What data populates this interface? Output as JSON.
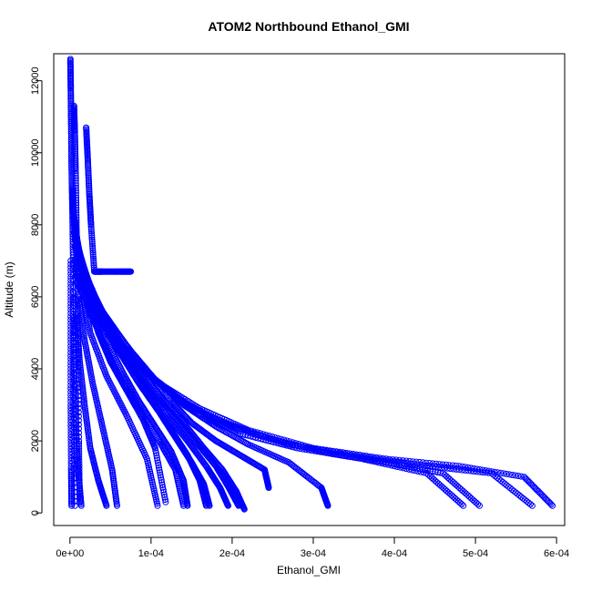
{
  "chart_data": {
    "type": "scatter",
    "title": "ATOM2 Northbound Ethanol_GMI",
    "xlabel": "Ethanol_GMI",
    "ylabel": "Altitude (m)",
    "xlim": [
      -2e-05,
      0.00061
    ],
    "ylim": [
      -350,
      12750
    ],
    "x_ticks": [
      0,
      0.0001,
      0.0002,
      0.0003,
      0.0004,
      0.0005,
      0.0006
    ],
    "x_tick_labels": [
      "0e+00",
      "1e-04",
      "2e-04",
      "3e-04",
      "4e-04",
      "5e-04",
      "6e-04"
    ],
    "y_ticks": [
      0,
      2000,
      4000,
      6000,
      8000,
      10000,
      12000
    ],
    "y_tick_labels": [
      "0",
      "2000",
      "4000",
      "6000",
      "8000",
      "10000",
      "12000"
    ],
    "grid": false,
    "marker": "open-circle",
    "line_connected": true,
    "series_color": "#0000ff",
    "series": [
      {
        "x": [
          5e-07,
          1e-06,
          1.5e-06,
          2e-06,
          3e-06,
          4e-06,
          5e-06,
          6e-06
        ],
        "y": [
          12600,
          11800,
          10800,
          9600,
          8400,
          6800,
          3000,
          200
        ]
      },
      {
        "x": [
          5e-06,
          6e-06,
          7e-06,
          8e-06,
          9e-06,
          1e-05,
          1.1e-05,
          1.2e-05
        ],
        "y": [
          11300,
          10600,
          9500,
          8000,
          6500,
          4500,
          2000,
          300
        ]
      },
      {
        "x": [
          2e-05,
          2.2e-05,
          2.4e-05,
          2.6e-05,
          3e-05,
          4e-05,
          6e-05,
          7.5e-05
        ],
        "y": [
          10700,
          9800,
          8800,
          8000,
          6700,
          6700,
          6700,
          6700
        ]
      },
      {
        "x": [
          3e-06,
          5e-06,
          1.2e-05,
          2.2e-05,
          3.5e-05,
          5e-05,
          7e-05,
          9e-05,
          0.000105,
          0.000118
        ],
        "y": [
          9000,
          8200,
          7000,
          6000,
          5000,
          4200,
          3400,
          2600,
          1800,
          300
        ]
      },
      {
        "x": [
          3e-06,
          6e-06,
          1.5e-05,
          2.8e-05,
          4.5e-05,
          6.5e-05,
          8.5e-05,
          0.000105,
          0.000125,
          0.00014,
          0.000145
        ],
        "y": [
          8800,
          7800,
          6800,
          5800,
          4800,
          3900,
          3100,
          2400,
          1700,
          900,
          200
        ]
      },
      {
        "x": [
          3e-06,
          8e-06,
          1.8e-05,
          3.5e-05,
          5.5e-05,
          8e-05,
          0.000105,
          0.000125,
          0.000145,
          0.00016,
          0.000168
        ],
        "y": [
          8600,
          7600,
          6600,
          5600,
          4700,
          3800,
          3000,
          2300,
          1600,
          900,
          200
        ]
      },
      {
        "x": [
          4e-06,
          1e-05,
          2.2e-05,
          4e-05,
          6e-05,
          8.5e-05,
          0.00011,
          0.00013,
          0.00015,
          0.000165,
          0.000172
        ],
        "y": [
          8400,
          7400,
          6400,
          5400,
          4500,
          3600,
          2800,
          2100,
          1400,
          800,
          200
        ]
      },
      {
        "x": [
          4e-06,
          1.2e-05,
          2.6e-05,
          4.5e-05,
          6.8e-05,
          9.5e-05,
          0.00012,
          0.000145,
          0.000168,
          0.000185,
          0.000195
        ],
        "y": [
          8200,
          7200,
          6200,
          5200,
          4300,
          3500,
          2700,
          2000,
          1300,
          700,
          200
        ]
      },
      {
        "x": [
          5e-06,
          1.4e-05,
          3e-05,
          5.2e-05,
          7.8e-05,
          0.000105,
          0.000132,
          0.000158,
          0.00018,
          0.000196,
          0.000208
        ],
        "y": [
          8000,
          7000,
          6000,
          5000,
          4100,
          3300,
          2600,
          1900,
          1300,
          700,
          200
        ]
      },
      {
        "x": [
          5e-06,
          1.6e-05,
          3.5e-05,
          6e-05,
          8.5e-05,
          0.000112,
          0.00014,
          0.000165,
          0.000188,
          0.000205,
          0.000215
        ],
        "y": [
          7800,
          6800,
          5800,
          4800,
          4000,
          3200,
          2500,
          1800,
          1200,
          600,
          100
        ]
      },
      {
        "x": [
          6e-06,
          1.8e-05,
          4e-05,
          6.8e-05,
          9.5e-05,
          0.000125,
          0.00015,
          0.00018,
          0.00021,
          0.00024,
          0.000245
        ],
        "y": [
          7600,
          6600,
          5600,
          4700,
          3900,
          3100,
          2500,
          2000,
          1600,
          1200,
          700
        ]
      },
      {
        "x": [
          6e-06,
          2e-05,
          4.5e-05,
          7.5e-05,
          0.000105,
          0.00014,
          0.00018,
          0.00022,
          0.00027,
          0.00031,
          0.000318
        ],
        "y": [
          7400,
          6400,
          5400,
          4500,
          3700,
          3000,
          2400,
          1900,
          1400,
          700,
          200
        ]
      },
      {
        "x": [
          6e-06,
          2.2e-05,
          5e-05,
          8e-05,
          0.00012,
          0.00016,
          0.00021,
          0.00028,
          0.00036,
          0.00044,
          0.000485
        ],
        "y": [
          7000,
          6000,
          5000,
          4200,
          3400,
          2700,
          2200,
          1800,
          1500,
          1100,
          200
        ]
      },
      {
        "x": [
          7e-06,
          2.5e-05,
          5.5e-05,
          9e-05,
          0.00013,
          0.00018,
          0.00024,
          0.00031,
          0.00039,
          0.00046,
          0.000505
        ],
        "y": [
          6800,
          5800,
          4800,
          4000,
          3200,
          2600,
          2100,
          1700,
          1400,
          1100,
          200
        ]
      },
      {
        "x": [
          8e-06,
          3e-05,
          6e-05,
          0.0001,
          0.000145,
          0.0002,
          0.00027,
          0.00035,
          0.00044,
          0.00052,
          0.00057
        ],
        "y": [
          6600,
          5600,
          4600,
          3800,
          3000,
          2400,
          1900,
          1600,
          1300,
          1100,
          200
        ]
      },
      {
        "x": [
          8e-06,
          3.2e-05,
          6.5e-05,
          0.00011,
          0.00016,
          0.00022,
          0.0003,
          0.00039,
          0.00048,
          0.00056,
          0.000595
        ],
        "y": [
          6400,
          5400,
          4400,
          3600,
          2900,
          2300,
          1800,
          1500,
          1300,
          1000,
          200
        ]
      },
      {
        "x": [
          1e-06,
          1e-06,
          1e-06,
          1.5e-06,
          2e-06
        ],
        "y": [
          7000,
          5000,
          3000,
          1200,
          200
        ]
      },
      {
        "x": [
          4e-06,
          5e-06,
          7e-06,
          1e-05,
          1.4e-05
        ],
        "y": [
          6000,
          4200,
          2500,
          1200,
          200
        ]
      },
      {
        "x": [
          8e-06,
          1.2e-05,
          1.8e-05,
          2.5e-05,
          3.5e-05,
          4.5e-05
        ],
        "y": [
          5500,
          4200,
          3000,
          1800,
          900,
          200
        ]
      },
      {
        "x": [
          1e-05,
          1.8e-05,
          2.8e-05,
          4e-05,
          5.2e-05,
          5.8e-05
        ],
        "y": [
          6000,
          4800,
          3600,
          2400,
          1200,
          200
        ]
      },
      {
        "x": [
          1.5e-05,
          2.5e-05,
          4.5e-05,
          7e-05,
          9.5e-05,
          0.000108
        ],
        "y": [
          6200,
          5000,
          3800,
          2700,
          1500,
          200
        ]
      },
      {
        "x": [
          2e-05,
          4e-05,
          6e-05,
          8.5e-05,
          0.00011,
          0.00013,
          0.00014
        ],
        "y": [
          5800,
          4800,
          3800,
          2900,
          2000,
          1200,
          200
        ]
      }
    ]
  }
}
